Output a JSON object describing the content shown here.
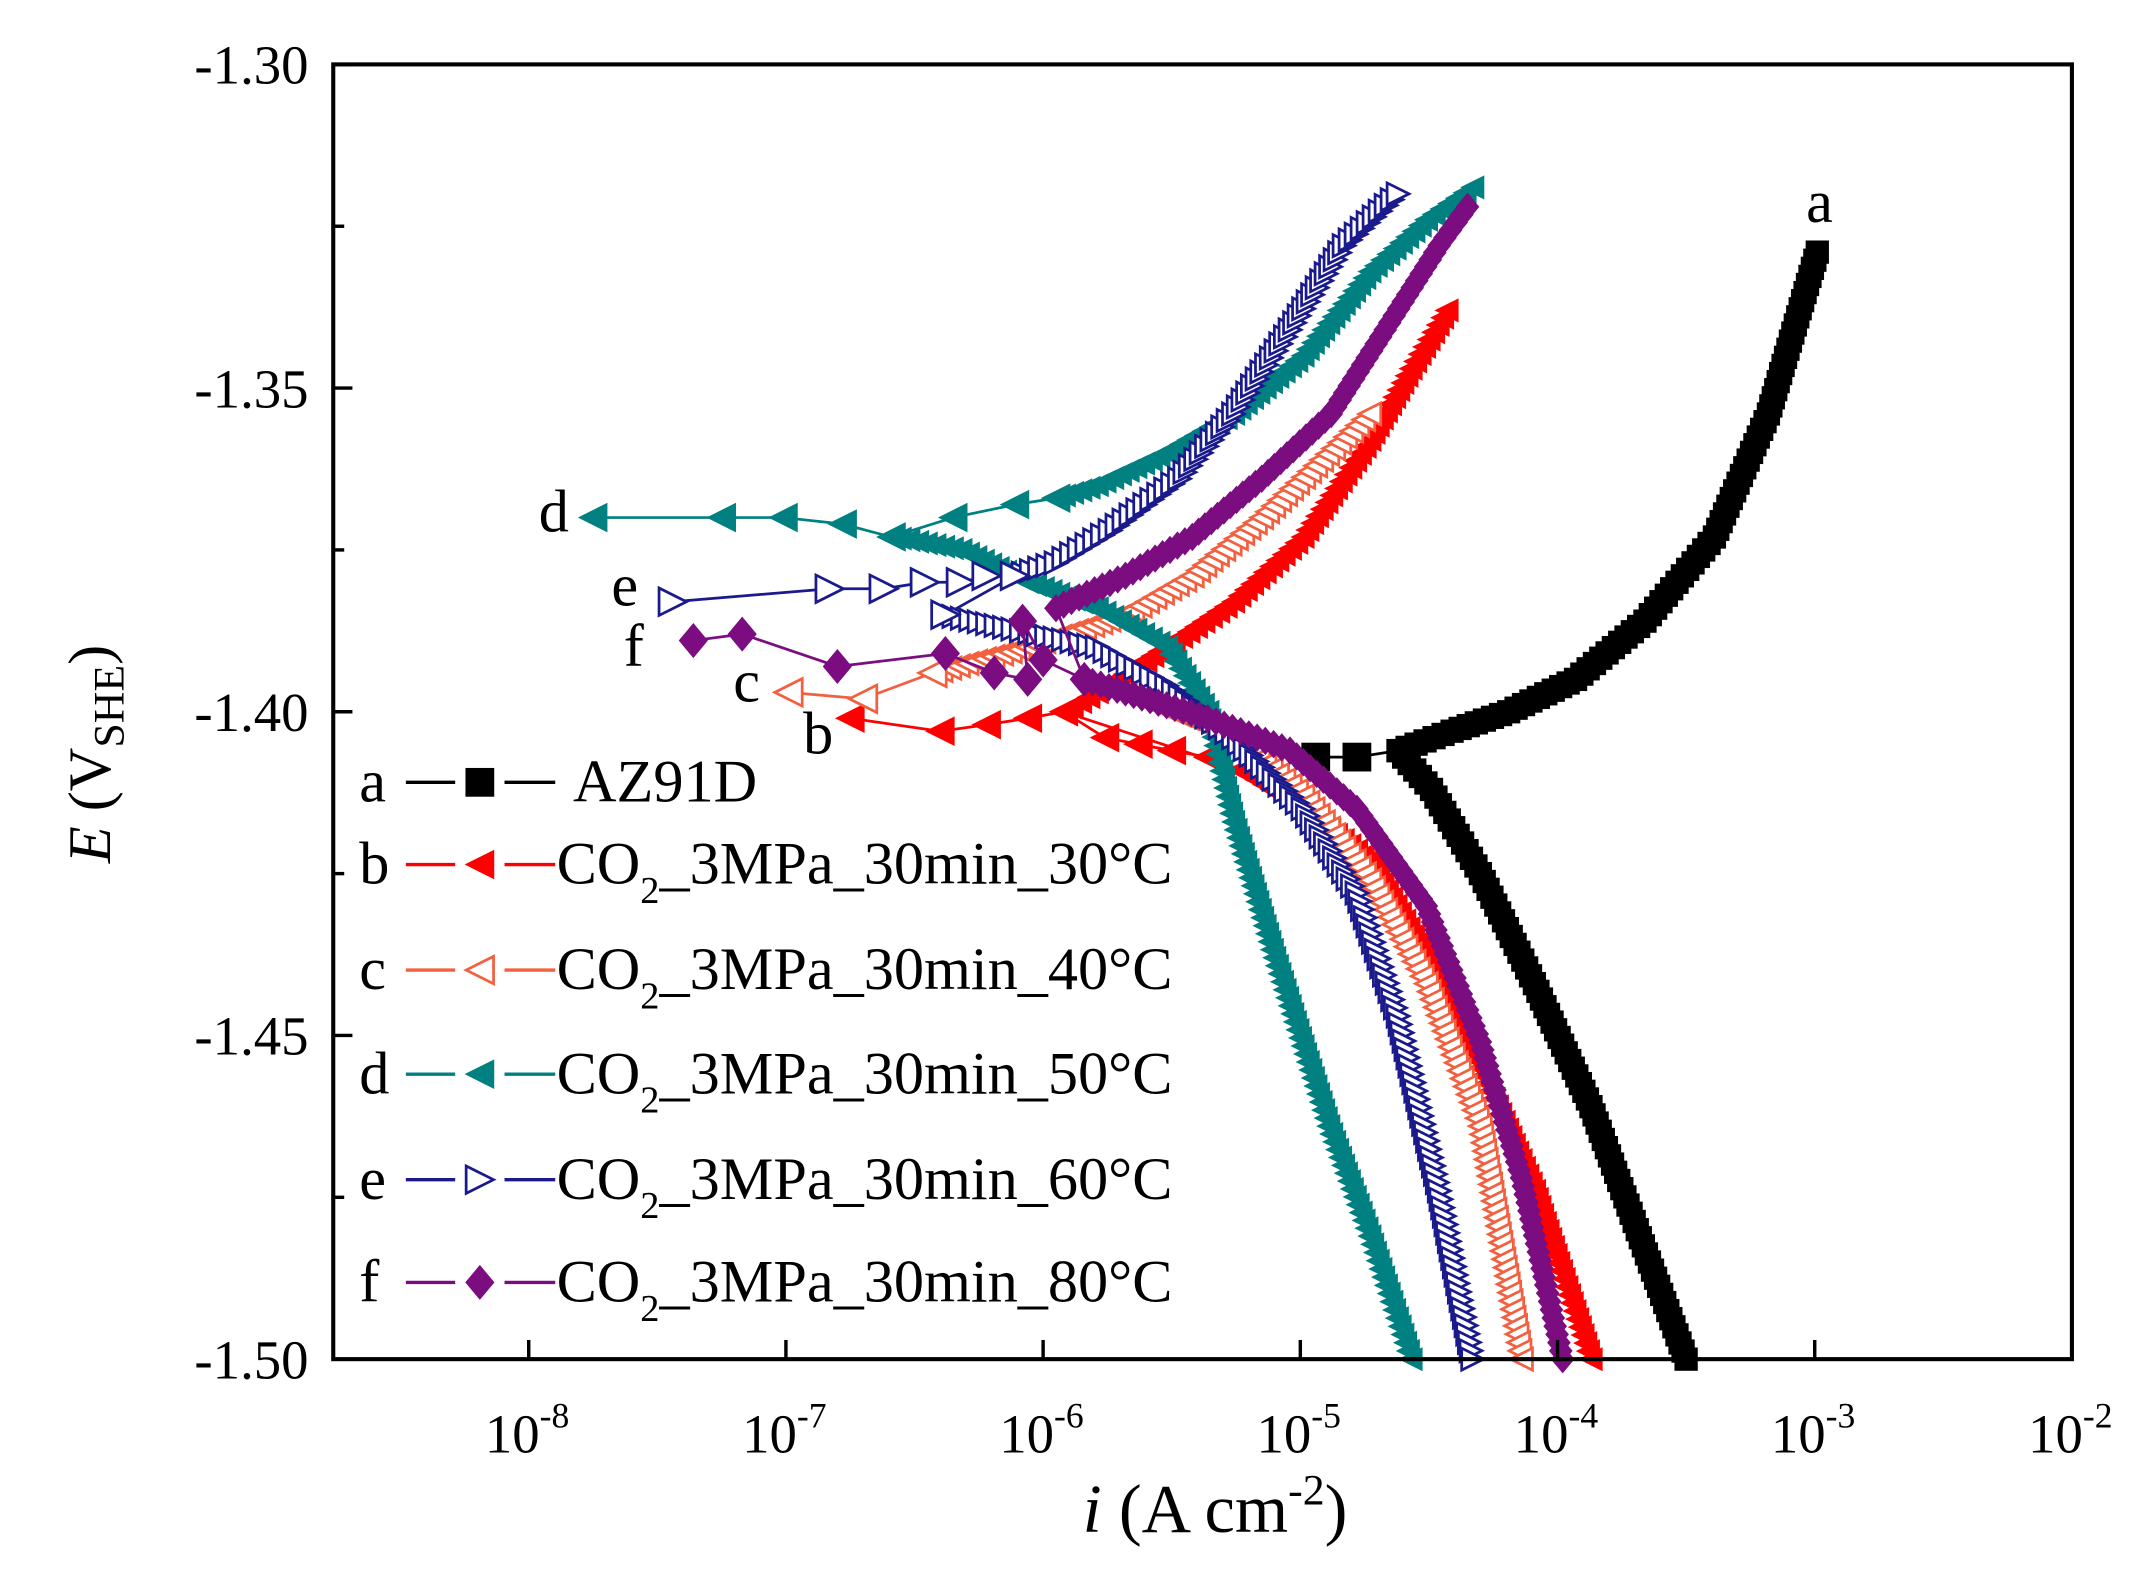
{
  "chart_data": {
    "type": "line",
    "title": "",
    "xlabel": {
      "symbol": "i",
      "text": " (A cm",
      "sup": "-2",
      "close": ")"
    },
    "ylabel": {
      "symbol": "E",
      "open": " (V",
      "sub": "SHE",
      "close": ")"
    },
    "xscale": "log",
    "xlim_log10": [
      -8.76,
      -2
    ],
    "ylim": [
      -1.5,
      -1.3
    ],
    "x_ticks": [
      {
        "base": "10",
        "exp": "-8",
        "log": -8
      },
      {
        "base": "10",
        "exp": "-7",
        "log": -7
      },
      {
        "base": "10",
        "exp": "-6",
        "log": -6
      },
      {
        "base": "10",
        "exp": "-5",
        "log": -5
      },
      {
        "base": "10",
        "exp": "-4",
        "log": -4
      },
      {
        "base": "10",
        "exp": "-3",
        "log": -3
      },
      {
        "base": "10",
        "exp": "-2",
        "log": -2
      }
    ],
    "y_ticks": [
      "-1.30",
      "-1.35",
      "-1.40",
      "-1.45",
      "-1.50"
    ],
    "y_tick_values": [
      -1.3,
      -1.35,
      -1.4,
      -1.45,
      -1.5
    ],
    "grid": false,
    "legend_position": "bottom-left",
    "series": [
      {
        "key": "a",
        "name_main": "AZ91D",
        "name_sub": "",
        "name_rest": "",
        "color": "#000000",
        "marker": "square",
        "filled": true,
        "sparse": [
          [
            -4.94,
            -1.407
          ],
          [
            -4.78,
            -1.407
          ]
        ],
        "anodic": [
          [
            -4.62,
            -1.406
          ],
          [
            -4.41,
            -1.403
          ],
          [
            -4.19,
            -1.4
          ],
          [
            -3.93,
            -1.395
          ],
          [
            -3.66,
            -1.386
          ],
          [
            -3.39,
            -1.373
          ],
          [
            -3.18,
            -1.354
          ],
          [
            -2.99,
            -1.329
          ]
        ],
        "cathodic": [
          [
            -4.62,
            -1.406
          ],
          [
            -4.49,
            -1.412
          ],
          [
            -4.3,
            -1.425
          ],
          [
            -4.09,
            -1.442
          ],
          [
            -3.87,
            -1.461
          ],
          [
            -3.69,
            -1.48
          ],
          [
            -3.5,
            -1.5
          ]
        ]
      },
      {
        "key": "b",
        "name_main": "CO",
        "name_sub": "2",
        "name_rest": "_3MPa_30min_30°C",
        "color": "#ff0000",
        "marker": "tri-left",
        "filled": true,
        "sparse": [
          [
            -6.75,
            -1.401
          ],
          [
            -6.4,
            -1.403
          ],
          [
            -6.22,
            -1.402
          ],
          [
            -6.06,
            -1.401
          ],
          [
            -5.92,
            -1.4
          ],
          [
            -5.76,
            -1.404
          ],
          [
            -5.63,
            -1.405
          ],
          [
            -5.5,
            -1.406
          ],
          [
            -5.36,
            -1.407
          ],
          [
            -5.23,
            -1.409
          ]
        ],
        "anodic": [
          [
            -5.92,
            -1.4
          ],
          [
            -5.79,
            -1.397
          ],
          [
            -5.52,
            -1.39
          ],
          [
            -5.26,
            -1.383
          ],
          [
            -4.99,
            -1.373
          ],
          [
            -4.73,
            -1.358
          ],
          [
            -4.57,
            -1.347
          ],
          [
            -4.43,
            -1.338
          ]
        ],
        "cathodic": [
          [
            -5.23,
            -1.409
          ],
          [
            -4.99,
            -1.415
          ],
          [
            -4.73,
            -1.423
          ],
          [
            -4.51,
            -1.438
          ],
          [
            -4.3,
            -1.455
          ],
          [
            -4.09,
            -1.474
          ],
          [
            -3.87,
            -1.5
          ]
        ]
      },
      {
        "key": "c",
        "name_main": "CO",
        "name_sub": "2",
        "name_rest": "_3MPa_30min_40°C",
        "color": "#f2603f",
        "marker": "tri-left",
        "filled": false,
        "sparse": [
          [
            -6.99,
            -1.397
          ],
          [
            -6.7,
            -1.398
          ],
          [
            -6.43,
            -1.394
          ]
        ],
        "anodic": [
          [
            -6.43,
            -1.394
          ],
          [
            -6.06,
            -1.39
          ],
          [
            -5.68,
            -1.385
          ],
          [
            -5.42,
            -1.379
          ],
          [
            -5.15,
            -1.37
          ],
          [
            -4.94,
            -1.362
          ],
          [
            -4.73,
            -1.354
          ]
        ],
        "cathodic": [
          [
            -5.68,
            -1.397
          ],
          [
            -5.26,
            -1.404
          ],
          [
            -4.99,
            -1.413
          ],
          [
            -4.73,
            -1.426
          ],
          [
            -4.51,
            -1.442
          ],
          [
            -4.3,
            -1.464
          ],
          [
            -4.14,
            -1.5
          ]
        ]
      },
      {
        "key": "d",
        "name_main": "CO",
        "name_sub": "2",
        "name_rest": "_3MPa_30min_50°C",
        "color": "#008080",
        "marker": "tri-left",
        "filled": true,
        "sparse": [
          [
            -7.75,
            -1.37
          ],
          [
            -7.25,
            -1.37
          ],
          [
            -7.01,
            -1.37
          ],
          [
            -6.78,
            -1.371
          ],
          [
            -6.59,
            -1.373
          ],
          [
            -6.35,
            -1.37
          ],
          [
            -6.11,
            -1.368
          ],
          [
            -5.95,
            -1.367
          ]
        ],
        "anodic": [
          [
            -5.95,
            -1.367
          ],
          [
            -5.79,
            -1.365
          ],
          [
            -5.52,
            -1.36
          ],
          [
            -5.26,
            -1.354
          ],
          [
            -4.99,
            -1.345
          ],
          [
            -4.73,
            -1.332
          ],
          [
            -4.51,
            -1.324
          ],
          [
            -4.33,
            -1.319
          ]
        ],
        "cathodic": [
          [
            -6.59,
            -1.373
          ],
          [
            -6.32,
            -1.375
          ],
          [
            -6.06,
            -1.38
          ],
          [
            -5.79,
            -1.384
          ],
          [
            -5.52,
            -1.39
          ],
          [
            -5.36,
            -1.4
          ],
          [
            -5.26,
            -1.417
          ],
          [
            -5.1,
            -1.438
          ],
          [
            -4.89,
            -1.464
          ],
          [
            -4.73,
            -1.481
          ],
          [
            -4.57,
            -1.5
          ]
        ]
      },
      {
        "key": "e",
        "name_main": "CO",
        "name_sub": "2",
        "name_rest": "_3MPa_30min_60°C",
        "color": "#1a1a8c",
        "marker": "tri-right",
        "filled": false,
        "sparse": [
          [
            -7.44,
            -1.383
          ],
          [
            -6.83,
            -1.381
          ],
          [
            -6.62,
            -1.381
          ],
          [
            -6.46,
            -1.38
          ],
          [
            -6.32,
            -1.38
          ],
          [
            -6.22,
            -1.379
          ],
          [
            -6.11,
            -1.379
          ],
          [
            -6.38,
            -1.385
          ]
        ],
        "anodic": [
          [
            -6.11,
            -1.379
          ],
          [
            -5.95,
            -1.377
          ],
          [
            -5.74,
            -1.372
          ],
          [
            -5.47,
            -1.364
          ],
          [
            -5.26,
            -1.354
          ],
          [
            -5.04,
            -1.341
          ],
          [
            -4.83,
            -1.328
          ],
          [
            -4.62,
            -1.32
          ]
        ],
        "cathodic": [
          [
            -6.38,
            -1.385
          ],
          [
            -5.79,
            -1.39
          ],
          [
            -5.52,
            -1.396
          ],
          [
            -5.26,
            -1.404
          ],
          [
            -4.99,
            -1.415
          ],
          [
            -4.78,
            -1.428
          ],
          [
            -4.62,
            -1.447
          ],
          [
            -4.46,
            -1.474
          ],
          [
            -4.33,
            -1.5
          ]
        ]
      },
      {
        "key": "f",
        "name_main": "CO",
        "name_sub": "2",
        "name_rest": "_3MPa_30min_80°C",
        "color": "#7b0d80",
        "marker": "diamond",
        "filled": true,
        "sparse": [
          [
            -7.36,
            -1.389
          ],
          [
            -7.17,
            -1.388
          ],
          [
            -6.8,
            -1.393
          ],
          [
            -6.38,
            -1.391
          ],
          [
            -6.19,
            -1.394
          ],
          [
            -6.06,
            -1.395
          ],
          [
            -6.08,
            -1.386
          ],
          [
            -6.0,
            -1.392
          ],
          [
            -5.84,
            -1.395
          ]
        ],
        "anodic": [
          [
            -5.95,
            -1.384
          ],
          [
            -5.68,
            -1.379
          ],
          [
            -5.42,
            -1.373
          ],
          [
            -5.15,
            -1.364
          ],
          [
            -4.88,
            -1.354
          ],
          [
            -4.67,
            -1.341
          ],
          [
            -4.46,
            -1.328
          ],
          [
            -4.35,
            -1.322
          ]
        ],
        "cathodic": [
          [
            -5.84,
            -1.395
          ],
          [
            -5.68,
            -1.397
          ],
          [
            -5.36,
            -1.401
          ],
          [
            -5.04,
            -1.406
          ],
          [
            -4.78,
            -1.415
          ],
          [
            -4.51,
            -1.43
          ],
          [
            -4.3,
            -1.451
          ],
          [
            -4.14,
            -1.472
          ],
          [
            -3.98,
            -1.5
          ]
        ]
      }
    ]
  }
}
